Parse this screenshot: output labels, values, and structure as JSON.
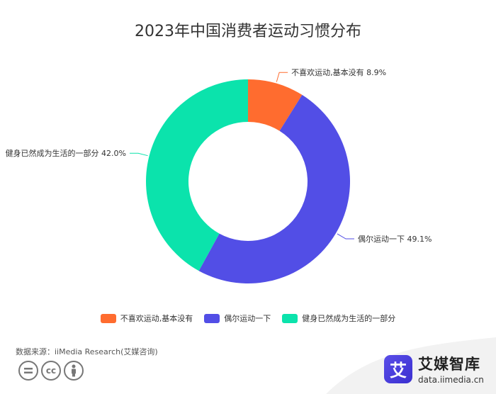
{
  "chart_data": {
    "type": "pie",
    "title": "2023年中国消费者运动习惯分布",
    "categories": [
      "不喜欢运动,基本没有",
      "偶尔运动一下",
      "健身已然成为生活的一部分"
    ],
    "values": [
      8.9,
      49.1,
      42.0
    ],
    "colors": [
      "#FF6C2F",
      "#524EE6",
      "#0BE3AC"
    ],
    "data_labels": [
      "不喜欢运动,基本没有 8.9%",
      "偶尔运动一下 49.1%",
      "健身已然成为生活的一部分 42.0%"
    ],
    "donut": true,
    "legend_position": "bottom"
  },
  "footer": {
    "source": "数据来源：iiMedia Research(艾媒咨询)",
    "license_icons": [
      "equals-icon",
      "cc-icon",
      "person-icon"
    ],
    "cc_text": "cc",
    "brand_logo_char": "艾",
    "brand_name": "艾媒智库",
    "brand_url": "data.iimedia.cn"
  }
}
